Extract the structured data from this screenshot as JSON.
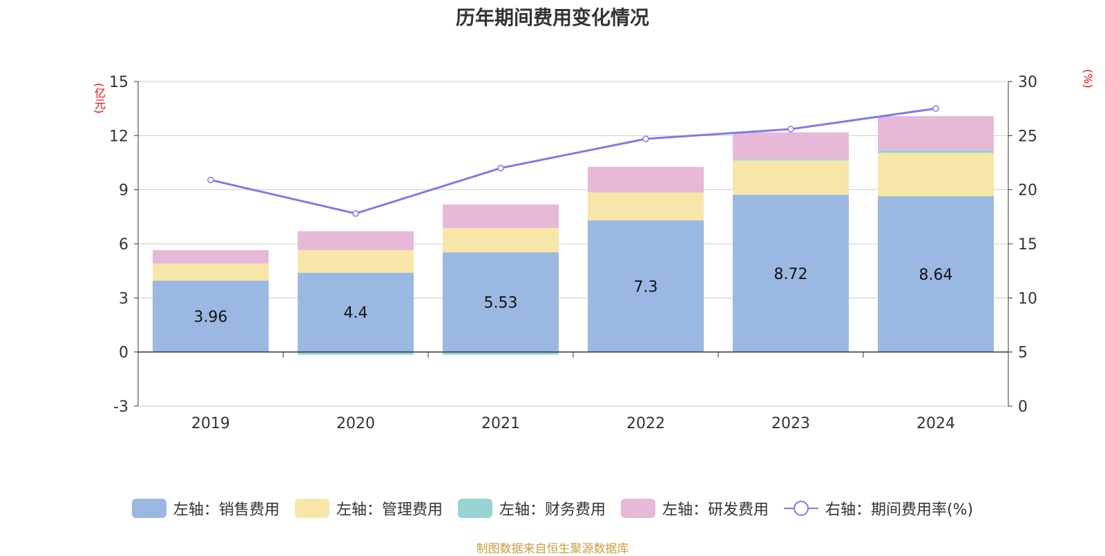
{
  "chart_data": {
    "type": "bar",
    "title": "历年期间费用变化情况",
    "left_unit": "(亿元)",
    "right_unit": "(%)",
    "categories": [
      "2019",
      "2020",
      "2021",
      "2022",
      "2023",
      "2024"
    ],
    "left_axis": {
      "min": -3,
      "max": 15,
      "ticks": [
        -3,
        0,
        3,
        6,
        9,
        12,
        15
      ]
    },
    "right_axis": {
      "min": 0,
      "max": 30,
      "ticks": [
        0,
        5,
        10,
        15,
        20,
        25,
        30
      ]
    },
    "series": [
      {
        "name": "左轴：销售费用",
        "type": "bar",
        "color": "#9bb8e2",
        "values": [
          3.96,
          4.4,
          5.53,
          7.3,
          8.72,
          8.64
        ]
      },
      {
        "name": "左轴：管理费用",
        "type": "bar",
        "color": "#f8e6a8",
        "values": [
          0.94,
          1.25,
          1.35,
          1.55,
          1.9,
          2.4
        ]
      },
      {
        "name": "左轴：财务费用",
        "type": "bar",
        "color": "#98d4d4",
        "values": [
          0.0,
          -0.15,
          -0.15,
          0.02,
          0.06,
          0.14
        ]
      },
      {
        "name": "左轴：研发费用",
        "type": "bar",
        "color": "#e8b8d8",
        "values": [
          0.75,
          1.05,
          1.3,
          1.4,
          1.5,
          1.9
        ]
      },
      {
        "name": "右轴：期间费用率(%)",
        "type": "line",
        "color": "#7b7bea",
        "values": [
          20.9,
          17.8,
          22.0,
          24.7,
          25.6,
          27.5
        ]
      }
    ],
    "bar_labels": [
      "3.96",
      "4.4",
      "5.53",
      "7.3",
      "8.72",
      "8.64"
    ]
  },
  "source": "制图数据来自恒生聚源数据库"
}
